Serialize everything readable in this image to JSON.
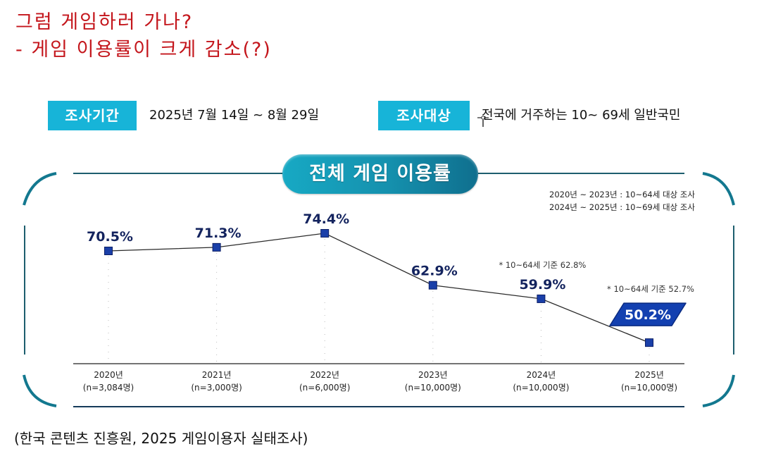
{
  "headline": {
    "line1": "그럼 게임하러 가나?",
    "line2": "- 게임 이용률이 크게 감소(?)"
  },
  "survey_info": {
    "period_label": "조사기간",
    "period_value": "2025년 7월 14일 ~ 8월 29일",
    "target_label": "조사대상",
    "target_value": "전국에 거주하는 10~ 69세 일반국민"
  },
  "notes": {
    "line1": "2020년 ~ 2023년 : 10~64세 대상 조사",
    "line2": "2024년 ~ 2025년 : 10~69세 대상 조사"
  },
  "source": "(한국 콘텐츠 진흥원, 2025 게임이용자 실태조사)",
  "colors": {
    "headline": "#c4161c",
    "badge": "#17b4d8",
    "frame": "#13788f",
    "marker": "#1a3fa8",
    "value_label": "#13235e",
    "highlight_badge": "#1340b0"
  },
  "chart_data": {
    "type": "line",
    "title": "전체 게임 이용률",
    "xlabel": "",
    "ylabel": "",
    "grid": false,
    "categories": [
      "2020년",
      "2021년",
      "2022년",
      "2023년",
      "2024년",
      "2025년"
    ],
    "sample_sizes": [
      "(n=3,084명)",
      "(n=3,000명)",
      "(n=6,000명)",
      "(n=10,000명)",
      "(n=10,000명)",
      "(n=10,000명)"
    ],
    "series": [
      {
        "name": "전체 게임 이용률",
        "values": [
          70.5,
          71.3,
          74.4,
          62.9,
          59.9,
          50.2
        ],
        "labels": [
          "70.5%",
          "71.3%",
          "74.4%",
          "62.9%",
          "59.9%",
          "50.2%"
        ]
      }
    ],
    "annotations": [
      {
        "category": "2024년",
        "text": "* 10~64세 기준 62.8%"
      },
      {
        "category": "2025년",
        "text": "* 10~64세 기준 52.7%"
      }
    ],
    "highlight": {
      "category": "2025년",
      "label": "50.2%"
    },
    "unit": "%"
  }
}
